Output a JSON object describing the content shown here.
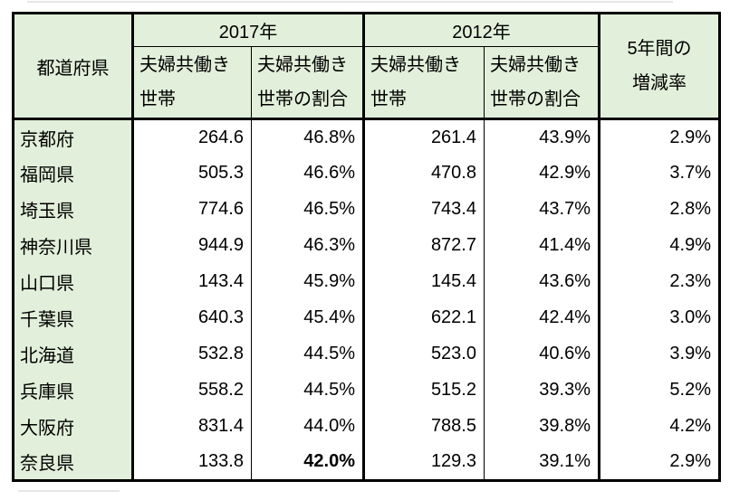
{
  "colors": {
    "header_fill": "#E2EFDA",
    "prefecture_column_fill": "#E2EFDA",
    "cell_fill": "#FFFFFF",
    "border": "#000000",
    "text": "#000000"
  },
  "chart_data": {
    "type": "table",
    "title": "",
    "header": {
      "prefecture": "都道府県",
      "year_2017": "2017年",
      "year_2012": "2012年",
      "households_label": "夫婦共働き\n世帯",
      "ratio_label": "夫婦共働き\n世帯の割合",
      "change_label": "5年間の\n増減率"
    },
    "emphasis": {
      "row": "奈良県",
      "column": "ratio_2017",
      "value": "42.0%",
      "style": "bold"
    },
    "rows": [
      {
        "prefecture": "京都府",
        "households_2017": "264.6",
        "ratio_2017": "46.8%",
        "households_2012": "261.4",
        "ratio_2012": "43.9%",
        "change": "2.9%"
      },
      {
        "prefecture": "福岡県",
        "households_2017": "505.3",
        "ratio_2017": "46.6%",
        "households_2012": "470.8",
        "ratio_2012": "42.9%",
        "change": "3.7%"
      },
      {
        "prefecture": "埼玉県",
        "households_2017": "774.6",
        "ratio_2017": "46.5%",
        "households_2012": "743.4",
        "ratio_2012": "43.7%",
        "change": "2.8%"
      },
      {
        "prefecture": "神奈川県",
        "households_2017": "944.9",
        "ratio_2017": "46.3%",
        "households_2012": "872.7",
        "ratio_2012": "41.4%",
        "change": "4.9%"
      },
      {
        "prefecture": "山口県",
        "households_2017": "143.4",
        "ratio_2017": "45.9%",
        "households_2012": "145.4",
        "ratio_2012": "43.6%",
        "change": "2.3%"
      },
      {
        "prefecture": "千葉県",
        "households_2017": "640.3",
        "ratio_2017": "45.4%",
        "households_2012": "622.1",
        "ratio_2012": "42.4%",
        "change": "3.0%"
      },
      {
        "prefecture": "北海道",
        "households_2017": "532.8",
        "ratio_2017": "44.5%",
        "households_2012": "523.0",
        "ratio_2012": "40.6%",
        "change": "3.9%"
      },
      {
        "prefecture": "兵庫県",
        "households_2017": "558.2",
        "ratio_2017": "44.5%",
        "households_2012": "515.2",
        "ratio_2012": "39.3%",
        "change": "5.2%"
      },
      {
        "prefecture": "大阪府",
        "households_2017": "831.4",
        "ratio_2017": "44.0%",
        "households_2012": "788.5",
        "ratio_2012": "39.8%",
        "change": "4.2%"
      },
      {
        "prefecture": "奈良県",
        "households_2017": "133.8",
        "ratio_2017": "42.0%",
        "households_2012": "129.3",
        "ratio_2012": "39.1%",
        "change": "2.9%"
      }
    ]
  }
}
